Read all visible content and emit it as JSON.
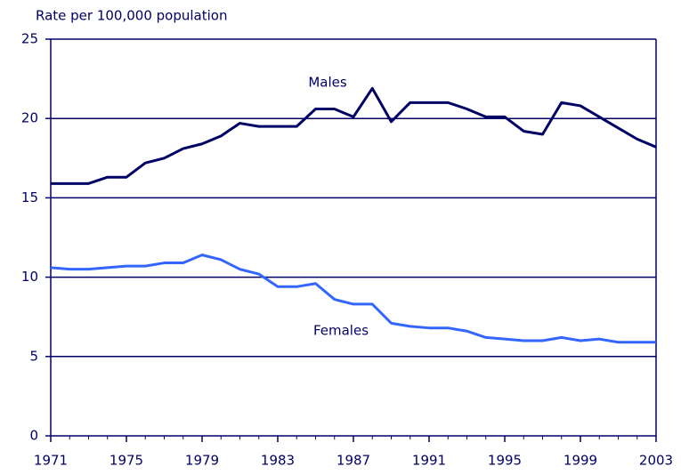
{
  "chart_data": {
    "type": "line",
    "y_label": "Rate per 100,000 population",
    "x": [
      1971,
      1972,
      1973,
      1974,
      1975,
      1976,
      1977,
      1978,
      1979,
      1980,
      1981,
      1982,
      1983,
      1984,
      1985,
      1986,
      1987,
      1988,
      1989,
      1990,
      1991,
      1992,
      1993,
      1994,
      1995,
      1996,
      1997,
      1998,
      1999,
      2000,
      2001,
      2002,
      2003
    ],
    "series": [
      {
        "name": "Males",
        "color": "#000066",
        "values": [
          15.9,
          15.9,
          15.9,
          16.3,
          16.3,
          17.2,
          17.5,
          18.1,
          18.4,
          18.9,
          19.7,
          19.5,
          19.5,
          19.5,
          20.6,
          20.6,
          20.1,
          21.9,
          19.8,
          21.0,
          21.0,
          21.0,
          20.6,
          20.1,
          20.1,
          19.2,
          19.0,
          21.0,
          20.8,
          20.1,
          19.4,
          18.7,
          18.2
        ]
      },
      {
        "name": "Females",
        "color": "#3366ff",
        "values": [
          10.6,
          10.5,
          10.5,
          10.6,
          10.7,
          10.7,
          10.9,
          10.9,
          11.4,
          11.1,
          10.5,
          10.2,
          9.4,
          9.4,
          9.6,
          8.6,
          8.3,
          8.3,
          7.1,
          6.9,
          6.8,
          6.8,
          6.6,
          6.2,
          6.1,
          6.0,
          6.0,
          6.2,
          6.0,
          6.1,
          5.9,
          5.9,
          5.9
        ]
      }
    ],
    "xlim": [
      1971,
      2003
    ],
    "xticks": [
      1971,
      1975,
      1979,
      1983,
      1987,
      1991,
      1995,
      1999,
      2003
    ],
    "ylim": [
      0,
      25
    ],
    "yticks": [
      0,
      5,
      10,
      15,
      20,
      25
    ],
    "grid": true
  }
}
